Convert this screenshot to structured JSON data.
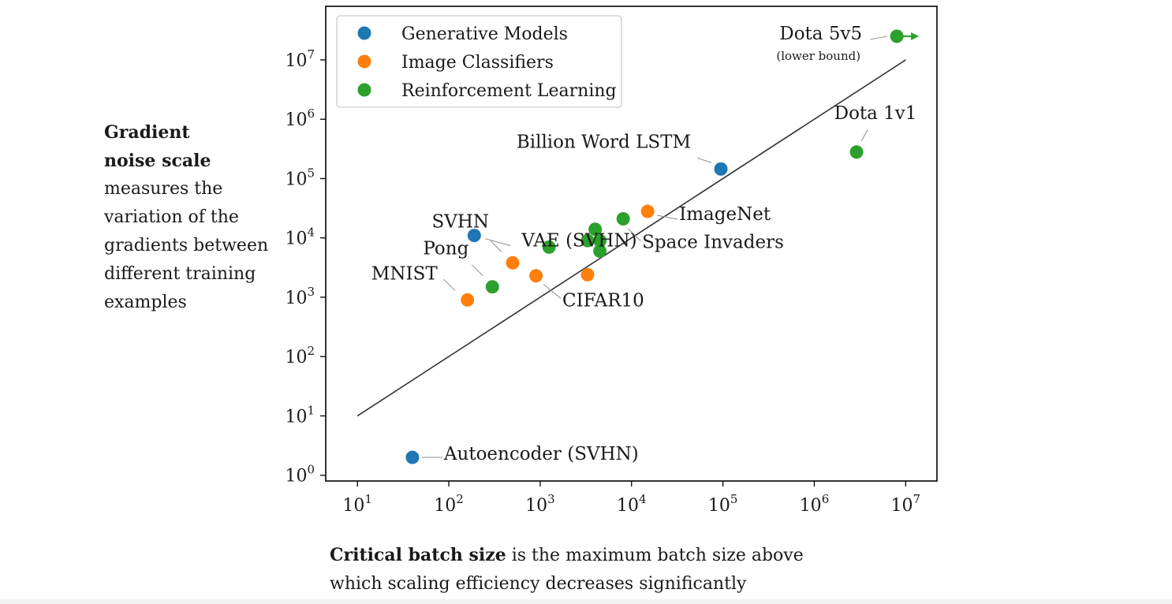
{
  "side_note": {
    "title_line1": "Gradient",
    "title_line2": "noise scale",
    "body_lines": [
      "measures the",
      "variation of the",
      "gradients between",
      "different training",
      "examples"
    ]
  },
  "bottom_note": {
    "title": "Critical batch size",
    "rest_line1": " is the maximum batch size above",
    "line2": "which scaling efficiency decreases significantly"
  },
  "colors": {
    "generative": "#1f77b4",
    "classifier": "#ff7f0e",
    "rl": "#2ca02c",
    "trend": "#333333",
    "frame": "#000000",
    "annotation_line": "#999999"
  },
  "chart_data": {
    "type": "scatter",
    "x_scale": "log",
    "y_scale": "log",
    "xlim": [
      4.5,
      22000000
    ],
    "ylim": [
      0.8,
      80000000
    ],
    "x_ticks": [
      {
        "value": 10,
        "base": "10",
        "exp": "1"
      },
      {
        "value": 100,
        "base": "10",
        "exp": "2"
      },
      {
        "value": 1000,
        "base": "10",
        "exp": "3"
      },
      {
        "value": 10000,
        "base": "10",
        "exp": "4"
      },
      {
        "value": 100000,
        "base": "10",
        "exp": "5"
      },
      {
        "value": 1000000,
        "base": "10",
        "exp": "6"
      },
      {
        "value": 10000000,
        "base": "10",
        "exp": "7"
      }
    ],
    "y_ticks": [
      {
        "value": 1,
        "base": "10",
        "exp": "0"
      },
      {
        "value": 10,
        "base": "10",
        "exp": "1"
      },
      {
        "value": 100,
        "base": "10",
        "exp": "2"
      },
      {
        "value": 1000,
        "base": "10",
        "exp": "3"
      },
      {
        "value": 10000,
        "base": "10",
        "exp": "4"
      },
      {
        "value": 100000,
        "base": "10",
        "exp": "5"
      },
      {
        "value": 1000000,
        "base": "10",
        "exp": "6"
      },
      {
        "value": 10000000,
        "base": "10",
        "exp": "7"
      }
    ],
    "grid": false,
    "legend_position": "top-left",
    "trend_line": {
      "x": [
        10,
        10000000
      ],
      "y": [
        10,
        10000000
      ]
    },
    "series": [
      {
        "name": "Generative Models",
        "color_key": "generative",
        "points": [
          {
            "x": 95000,
            "y": 145000,
            "label": "Billion Word LSTM"
          },
          {
            "x": 190,
            "y": 11000,
            "label": "VAE (SVHN)"
          },
          {
            "x": 40,
            "y": 2,
            "label": "Autoencoder (SVHN)"
          }
        ]
      },
      {
        "name": "Image Classifiers",
        "color_key": "classifier",
        "points": [
          {
            "x": 160,
            "y": 900,
            "label": "MNIST"
          },
          {
            "x": 500,
            "y": 3800,
            "label": "SVHN"
          },
          {
            "x": 900,
            "y": 2300,
            "label": ""
          },
          {
            "x": 3300,
            "y": 2400,
            "label": "CIFAR10"
          },
          {
            "x": 15000,
            "y": 28000,
            "label": "ImageNet"
          }
        ]
      },
      {
        "name": "Reinforcement Learning",
        "color_key": "rl",
        "points": [
          {
            "x": 300,
            "y": 1500,
            "label": "Pong"
          },
          {
            "x": 1250,
            "y": 7000,
            "label": ""
          },
          {
            "x": 3300,
            "y": 9000,
            "label": ""
          },
          {
            "x": 4000,
            "y": 14000,
            "label": ""
          },
          {
            "x": 4500,
            "y": 9000,
            "label": ""
          },
          {
            "x": 4500,
            "y": 6000,
            "label": ""
          },
          {
            "x": 8100,
            "y": 21000,
            "label": "Space Invaders"
          },
          {
            "x": 2900000,
            "y": 280000,
            "label": "Dota 1v1"
          },
          {
            "x": 8000000,
            "y": 25000000,
            "label": "Dota 5v5",
            "note": "(lower bound)",
            "lower_bound": true
          }
        ]
      }
    ]
  }
}
